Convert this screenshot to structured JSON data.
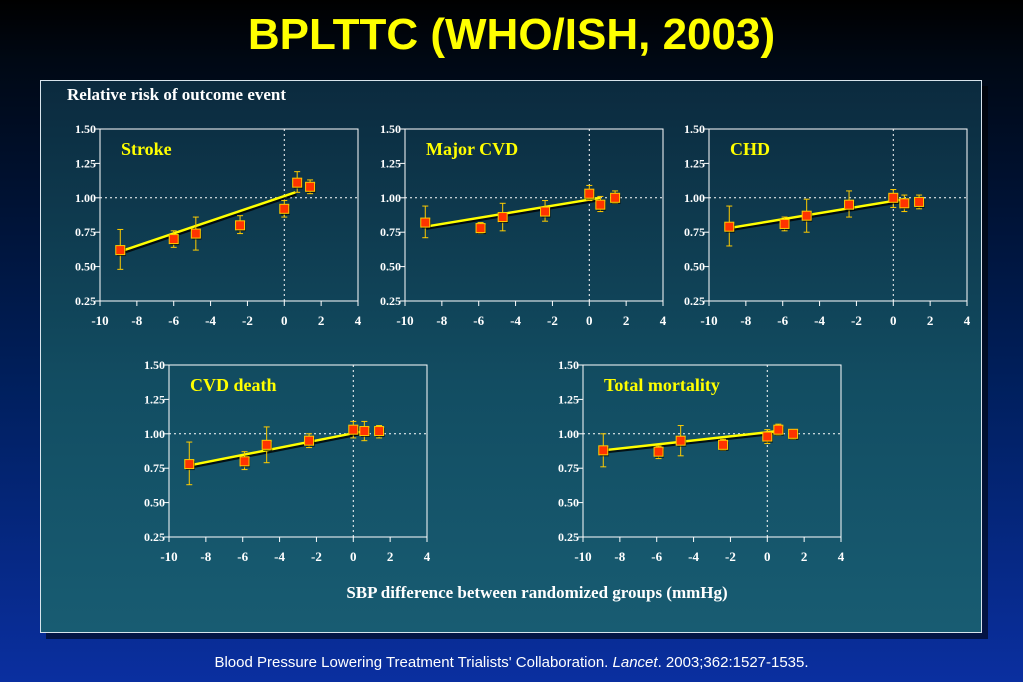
{
  "title": "BPLTTC (WHO/ISH, 2003)",
  "footer": {
    "pre": "Blood Pressure Lowering Treatment Trialists' Collaboration. ",
    "journal": "Lancet",
    "post": ". 2003;362:1527-1535."
  },
  "colors": {
    "title": "#ffff00",
    "point_fill": "#ff3300",
    "point_border": "#ffcc00",
    "line": "#ffff00",
    "panel_label": "#ffff00",
    "axis_text": "#ffffff"
  },
  "chart_data": [
    {
      "type": "scatter",
      "title": "Stroke",
      "ylabel": "Relative risk of outcome event",
      "xlabel": "",
      "xlim": [
        -10,
        4
      ],
      "ylim": [
        0.25,
        1.5
      ],
      "xticks": [
        "-10",
        "-8",
        "-6",
        "-4",
        "-2",
        "0",
        "2",
        "4"
      ],
      "yticks": [
        "0.25",
        "0.50",
        "0.75",
        "1.00",
        "1.25",
        "1.50"
      ],
      "reference_lines": {
        "x": 0,
        "y": 1.0
      },
      "points": [
        {
          "x": -8.9,
          "y": 0.62,
          "lo": 0.48,
          "hi": 0.77
        },
        {
          "x": -6.0,
          "y": 0.7,
          "lo": 0.64,
          "hi": 0.76
        },
        {
          "x": -4.8,
          "y": 0.74,
          "lo": 0.62,
          "hi": 0.86
        },
        {
          "x": -2.4,
          "y": 0.8,
          "lo": 0.74,
          "hi": 0.87
        },
        {
          "x": 0.0,
          "y": 0.92,
          "lo": 0.86,
          "hi": 0.98
        },
        {
          "x": 0.7,
          "y": 1.11,
          "lo": 1.04,
          "hi": 1.19
        },
        {
          "x": 1.4,
          "y": 1.08,
          "lo": 1.03,
          "hi": 1.13
        }
      ],
      "fit": [
        {
          "x": -8.9,
          "y": 0.61
        },
        {
          "x": 0.6,
          "y": 1.04
        }
      ]
    },
    {
      "type": "scatter",
      "title": "Major CVD",
      "xlim": [
        -10,
        4
      ],
      "ylim": [
        0.25,
        1.5
      ],
      "xticks": [
        "-10",
        "-8",
        "-6",
        "-4",
        "-2",
        "0",
        "2",
        "4"
      ],
      "yticks": [
        "0.25",
        "0.50",
        "0.75",
        "1.00",
        "1.25",
        "1.50"
      ],
      "reference_lines": {
        "x": 0,
        "y": 1.0
      },
      "points": [
        {
          "x": -8.9,
          "y": 0.82,
          "lo": 0.71,
          "hi": 0.94
        },
        {
          "x": -5.9,
          "y": 0.78,
          "lo": 0.74,
          "hi": 0.82
        },
        {
          "x": -4.7,
          "y": 0.86,
          "lo": 0.76,
          "hi": 0.96
        },
        {
          "x": -2.4,
          "y": 0.9,
          "lo": 0.83,
          "hi": 0.98
        },
        {
          "x": 0.0,
          "y": 1.03,
          "lo": 0.98,
          "hi": 1.09
        },
        {
          "x": 0.6,
          "y": 0.95,
          "lo": 0.9,
          "hi": 1.01
        },
        {
          "x": 1.4,
          "y": 1.0,
          "lo": 0.96,
          "hi": 1.05
        }
      ],
      "fit": [
        {
          "x": -8.9,
          "y": 0.79
        },
        {
          "x": 0.6,
          "y": 1.0
        }
      ]
    },
    {
      "type": "scatter",
      "title": "CHD",
      "xlim": [
        -10,
        4
      ],
      "ylim": [
        0.25,
        1.5
      ],
      "xticks": [
        "-10",
        "-8",
        "-6",
        "-4",
        "-2",
        "0",
        "2",
        "4"
      ],
      "yticks": [
        "0.25",
        "0.50",
        "0.75",
        "1.00",
        "1.25",
        "1.50"
      ],
      "reference_lines": {
        "x": 0,
        "y": 1.0
      },
      "points": [
        {
          "x": -8.9,
          "y": 0.79,
          "lo": 0.65,
          "hi": 0.94
        },
        {
          "x": -5.9,
          "y": 0.81,
          "lo": 0.76,
          "hi": 0.86
        },
        {
          "x": -4.7,
          "y": 0.87,
          "lo": 0.75,
          "hi": 0.99
        },
        {
          "x": -2.4,
          "y": 0.95,
          "lo": 0.86,
          "hi": 1.05
        },
        {
          "x": 0.0,
          "y": 1.0,
          "lo": 0.93,
          "hi": 1.06
        },
        {
          "x": 0.6,
          "y": 0.96,
          "lo": 0.9,
          "hi": 1.02
        },
        {
          "x": 1.4,
          "y": 0.97,
          "lo": 0.92,
          "hi": 1.02
        }
      ],
      "fit": [
        {
          "x": -8.9,
          "y": 0.78
        },
        {
          "x": 0.6,
          "y": 0.99
        }
      ]
    },
    {
      "type": "scatter",
      "title": "CVD death",
      "xlim": [
        -10,
        4
      ],
      "ylim": [
        0.25,
        1.5
      ],
      "xticks": [
        "-10",
        "-8",
        "-6",
        "-4",
        "-2",
        "0",
        "2",
        "4"
      ],
      "yticks": [
        "0.25",
        "0.50",
        "0.75",
        "1.00",
        "1.25",
        "1.50"
      ],
      "reference_lines": {
        "x": 0,
        "y": 1.0
      },
      "points": [
        {
          "x": -8.9,
          "y": 0.78,
          "lo": 0.63,
          "hi": 0.94
        },
        {
          "x": -5.9,
          "y": 0.8,
          "lo": 0.74,
          "hi": 0.87
        },
        {
          "x": -4.7,
          "y": 0.92,
          "lo": 0.79,
          "hi": 1.05
        },
        {
          "x": -2.4,
          "y": 0.95,
          "lo": 0.9,
          "hi": 1.0
        },
        {
          "x": 0.0,
          "y": 1.03,
          "lo": 0.97,
          "hi": 1.09
        },
        {
          "x": 0.6,
          "y": 1.02,
          "lo": 0.95,
          "hi": 1.09
        },
        {
          "x": 1.4,
          "y": 1.02,
          "lo": 0.97,
          "hi": 1.06
        }
      ],
      "fit": [
        {
          "x": -8.9,
          "y": 0.77
        },
        {
          "x": 0.6,
          "y": 1.02
        }
      ]
    },
    {
      "type": "scatter",
      "title": "Total mortality",
      "xlabel": "SBP difference between randomized groups (mmHg)",
      "xlim": [
        -10,
        4
      ],
      "ylim": [
        0.25,
        1.5
      ],
      "xticks": [
        "-10",
        "-8",
        "-6",
        "-4",
        "-2",
        "0",
        "2",
        "4"
      ],
      "yticks": [
        "0.25",
        "0.50",
        "0.75",
        "1.00",
        "1.25",
        "1.50"
      ],
      "reference_lines": {
        "x": 0,
        "y": 1.0
      },
      "points": [
        {
          "x": -8.9,
          "y": 0.88,
          "lo": 0.76,
          "hi": 1.0
        },
        {
          "x": -5.9,
          "y": 0.87,
          "lo": 0.82,
          "hi": 0.91
        },
        {
          "x": -4.7,
          "y": 0.95,
          "lo": 0.84,
          "hi": 1.06
        },
        {
          "x": -2.4,
          "y": 0.92,
          "lo": 0.88,
          "hi": 0.96
        },
        {
          "x": 0.0,
          "y": 0.98,
          "lo": 0.93,
          "hi": 1.03
        },
        {
          "x": 0.6,
          "y": 1.03,
          "lo": 0.99,
          "hi": 1.07
        },
        {
          "x": 1.4,
          "y": 1.0,
          "lo": 0.96,
          "hi": 1.03
        }
      ],
      "fit": [
        {
          "x": -8.9,
          "y": 0.88
        },
        {
          "x": 0.6,
          "y": 1.02
        }
      ]
    }
  ]
}
